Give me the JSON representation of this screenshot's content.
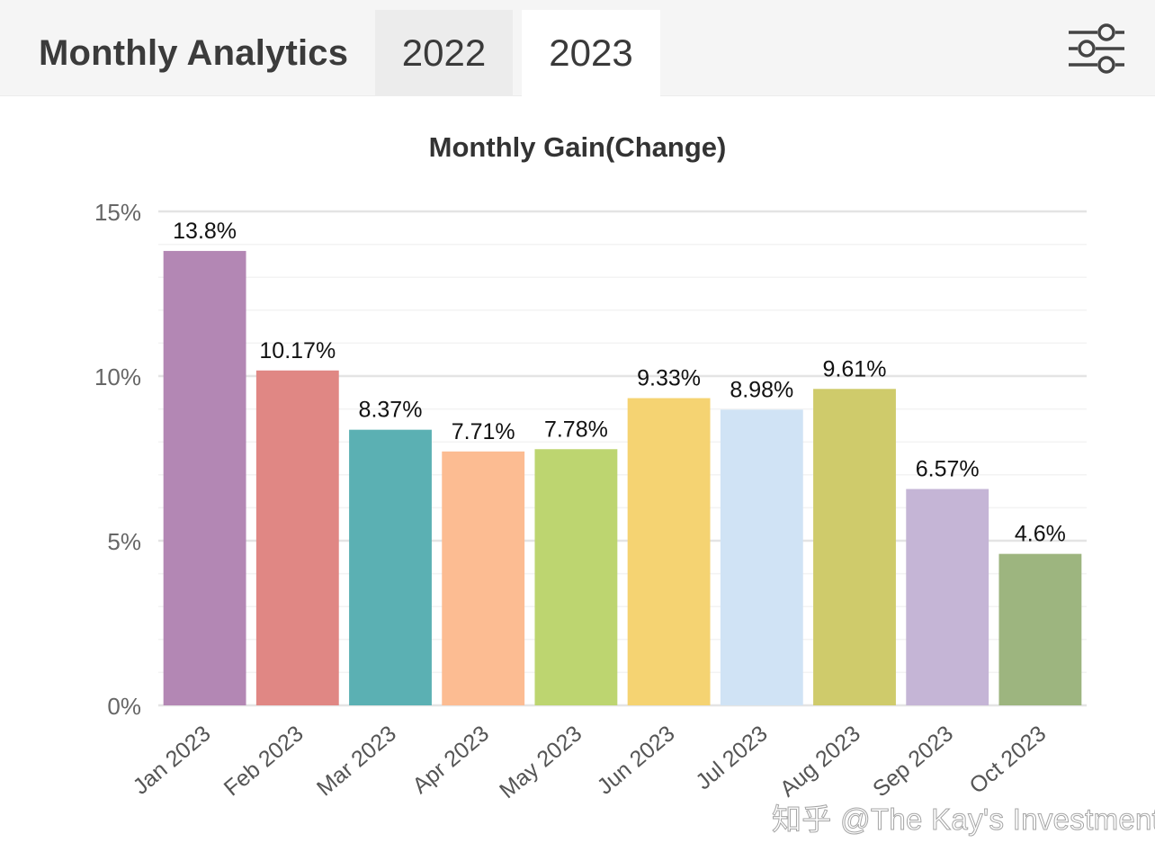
{
  "header": {
    "title": "Monthly Analytics",
    "tabs": [
      {
        "label": "2022",
        "active": false
      },
      {
        "label": "2023",
        "active": true
      }
    ],
    "filter_icon": "sliders-icon"
  },
  "chart_data": {
    "type": "bar",
    "title": "Monthly Gain(Change)",
    "categories": [
      "Jan 2023",
      "Feb 2023",
      "Mar 2023",
      "Apr 2023",
      "May 2023",
      "Jun 2023",
      "Jul 2023",
      "Aug 2023",
      "Sep 2023",
      "Oct 2023"
    ],
    "values": [
      13.8,
      10.17,
      8.37,
      7.71,
      7.78,
      9.33,
      8.98,
      9.61,
      6.57,
      4.6
    ],
    "data_labels": [
      "13.8%",
      "10.17%",
      "8.37%",
      "7.71%",
      "7.78%",
      "9.33%",
      "8.98%",
      "9.61%",
      "6.57%",
      "4.6%"
    ],
    "colors": [
      "#b387b4",
      "#e08784",
      "#5bb0b3",
      "#fcbc92",
      "#bdd570",
      "#f5d372",
      "#d0e3f5",
      "#cfcb6b",
      "#c5b5d6",
      "#9db57f"
    ],
    "yticks": [
      0,
      5,
      10,
      15
    ],
    "ytick_labels": [
      "0%",
      "5%",
      "10%",
      "15%"
    ],
    "ylim": [
      0,
      15
    ],
    "grid": true,
    "xlabel": "",
    "ylabel": ""
  },
  "watermark": "知乎 @The Kay's Investment"
}
